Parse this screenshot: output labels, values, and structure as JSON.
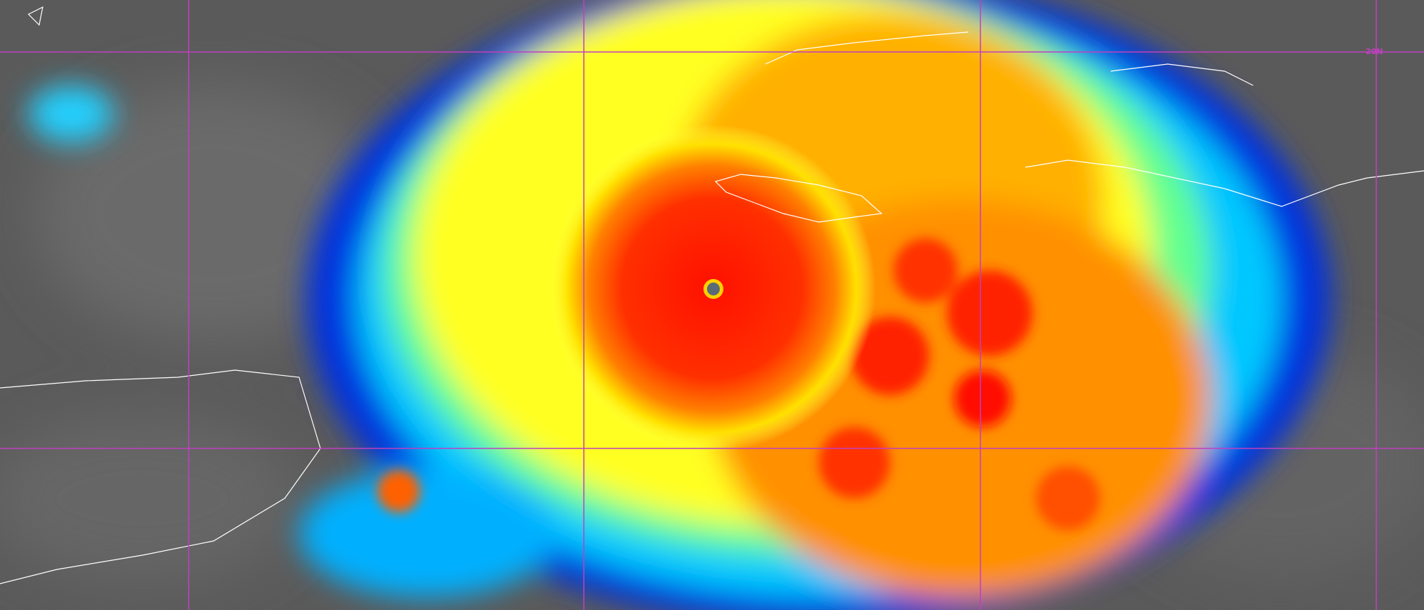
{
  "image": {
    "grid": {
      "line_color": "#c040c0",
      "labels": [
        "20N"
      ]
    },
    "coastline_color": "#ffffff",
    "colors": {
      "background_clouds": "#5a5a5a",
      "cold_tops": "#ff2000",
      "mid": "#ffe000",
      "warm": "#00e0ff",
      "edge": "#0020e0"
    }
  }
}
